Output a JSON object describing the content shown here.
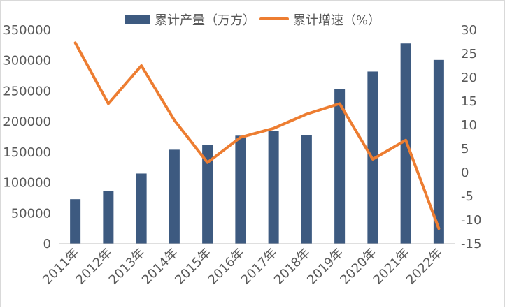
{
  "chart_data": {
    "type": "bar",
    "categories": [
      "2011年",
      "2012年",
      "2013年",
      "2014年",
      "2015年",
      "2016年",
      "2017年",
      "2018年",
      "2019年",
      "2020年",
      "2021年",
      "2022年"
    ],
    "series": [
      {
        "name": "累计产量（万方）",
        "type": "bar",
        "axis": "left",
        "color": "#3d5a80",
        "values": [
          73000,
          86000,
          115000,
          154000,
          162000,
          177000,
          185000,
          178000,
          253000,
          282000,
          328000,
          301000
        ]
      },
      {
        "name": "累计增速（%）",
        "type": "line",
        "axis": "right",
        "color": "#ed7d31",
        "values": [
          27.3,
          14.5,
          22.5,
          11.0,
          2.1,
          7.4,
          9.3,
          12.3,
          14.5,
          2.8,
          6.8,
          -11.8
        ]
      }
    ],
    "y_left": {
      "ylim": [
        0,
        350000
      ],
      "ticks": [
        0,
        50000,
        100000,
        150000,
        200000,
        250000,
        300000,
        350000
      ]
    },
    "y_right": {
      "ylim": [
        -15,
        30
      ],
      "ticks": [
        -15,
        -10,
        -5,
        0,
        5,
        10,
        15,
        20,
        25,
        30
      ]
    },
    "legend_position": "top",
    "grid": false
  }
}
